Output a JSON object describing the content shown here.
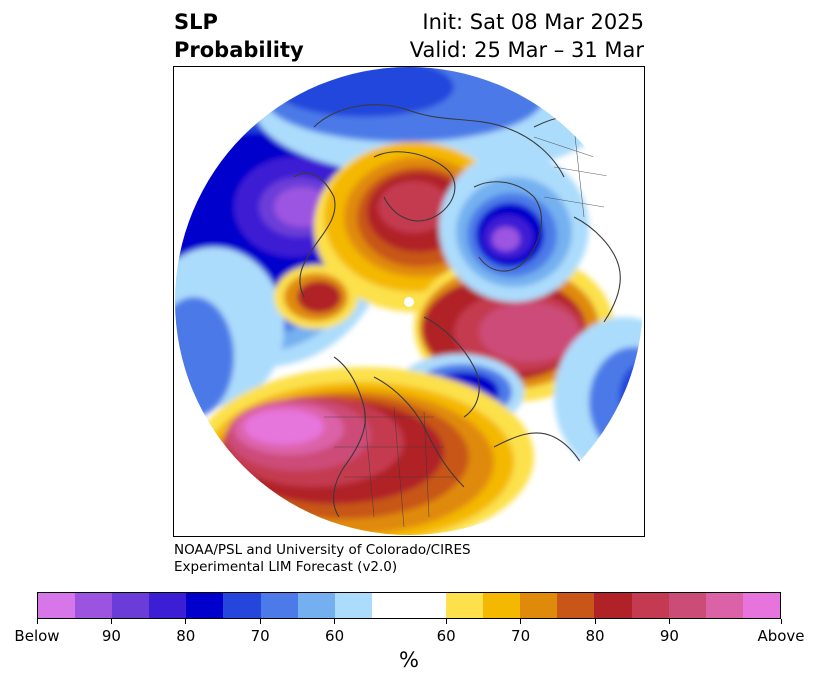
{
  "header": {
    "title_line1": "SLP",
    "title_line2": "Probability",
    "init": "Init: Sat 08 Mar 2025",
    "valid": "Valid: 25 Mar – 31 Mar"
  },
  "credit": {
    "line1": "NOAA/PSL and University of Colorado/CIRES",
    "line2": "Experimental LIM Forecast (v2.0)"
  },
  "colorbar": {
    "unit": "%",
    "colors": [
      "#d776e8",
      "#9c54e0",
      "#6c3cd8",
      "#3c1ed4",
      "#0000cc",
      "#2446dc",
      "#4c7ae8",
      "#74b0f0",
      "#acdcfc",
      "#ffffff",
      "#fce14c",
      "#f4b800",
      "#e08a0c",
      "#c85618",
      "#b02228",
      "#c43a50",
      "#cc4c78",
      "#dc62a8",
      "#e674dc"
    ],
    "labels": [
      "Below",
      "90",
      "80",
      "70",
      "60",
      "60",
      "70",
      "80",
      "90",
      "Above"
    ]
  },
  "map": {
    "palette": {
      "below_90": "#9c54e0",
      "below_80": "#3c1ed4",
      "below_70": "#0000cc",
      "below_60": "#4c7ae8",
      "below_50": "#74b0f0",
      "below_40": "#acdcfc",
      "above_40": "#fce14c",
      "above_50": "#f4b800",
      "above_60": "#e08a0c",
      "above_70": "#c85618",
      "above_80": "#b02228",
      "above_90": "#cc4c78",
      "above_max": "#e674dc",
      "coast": "#3a3a3a"
    }
  }
}
